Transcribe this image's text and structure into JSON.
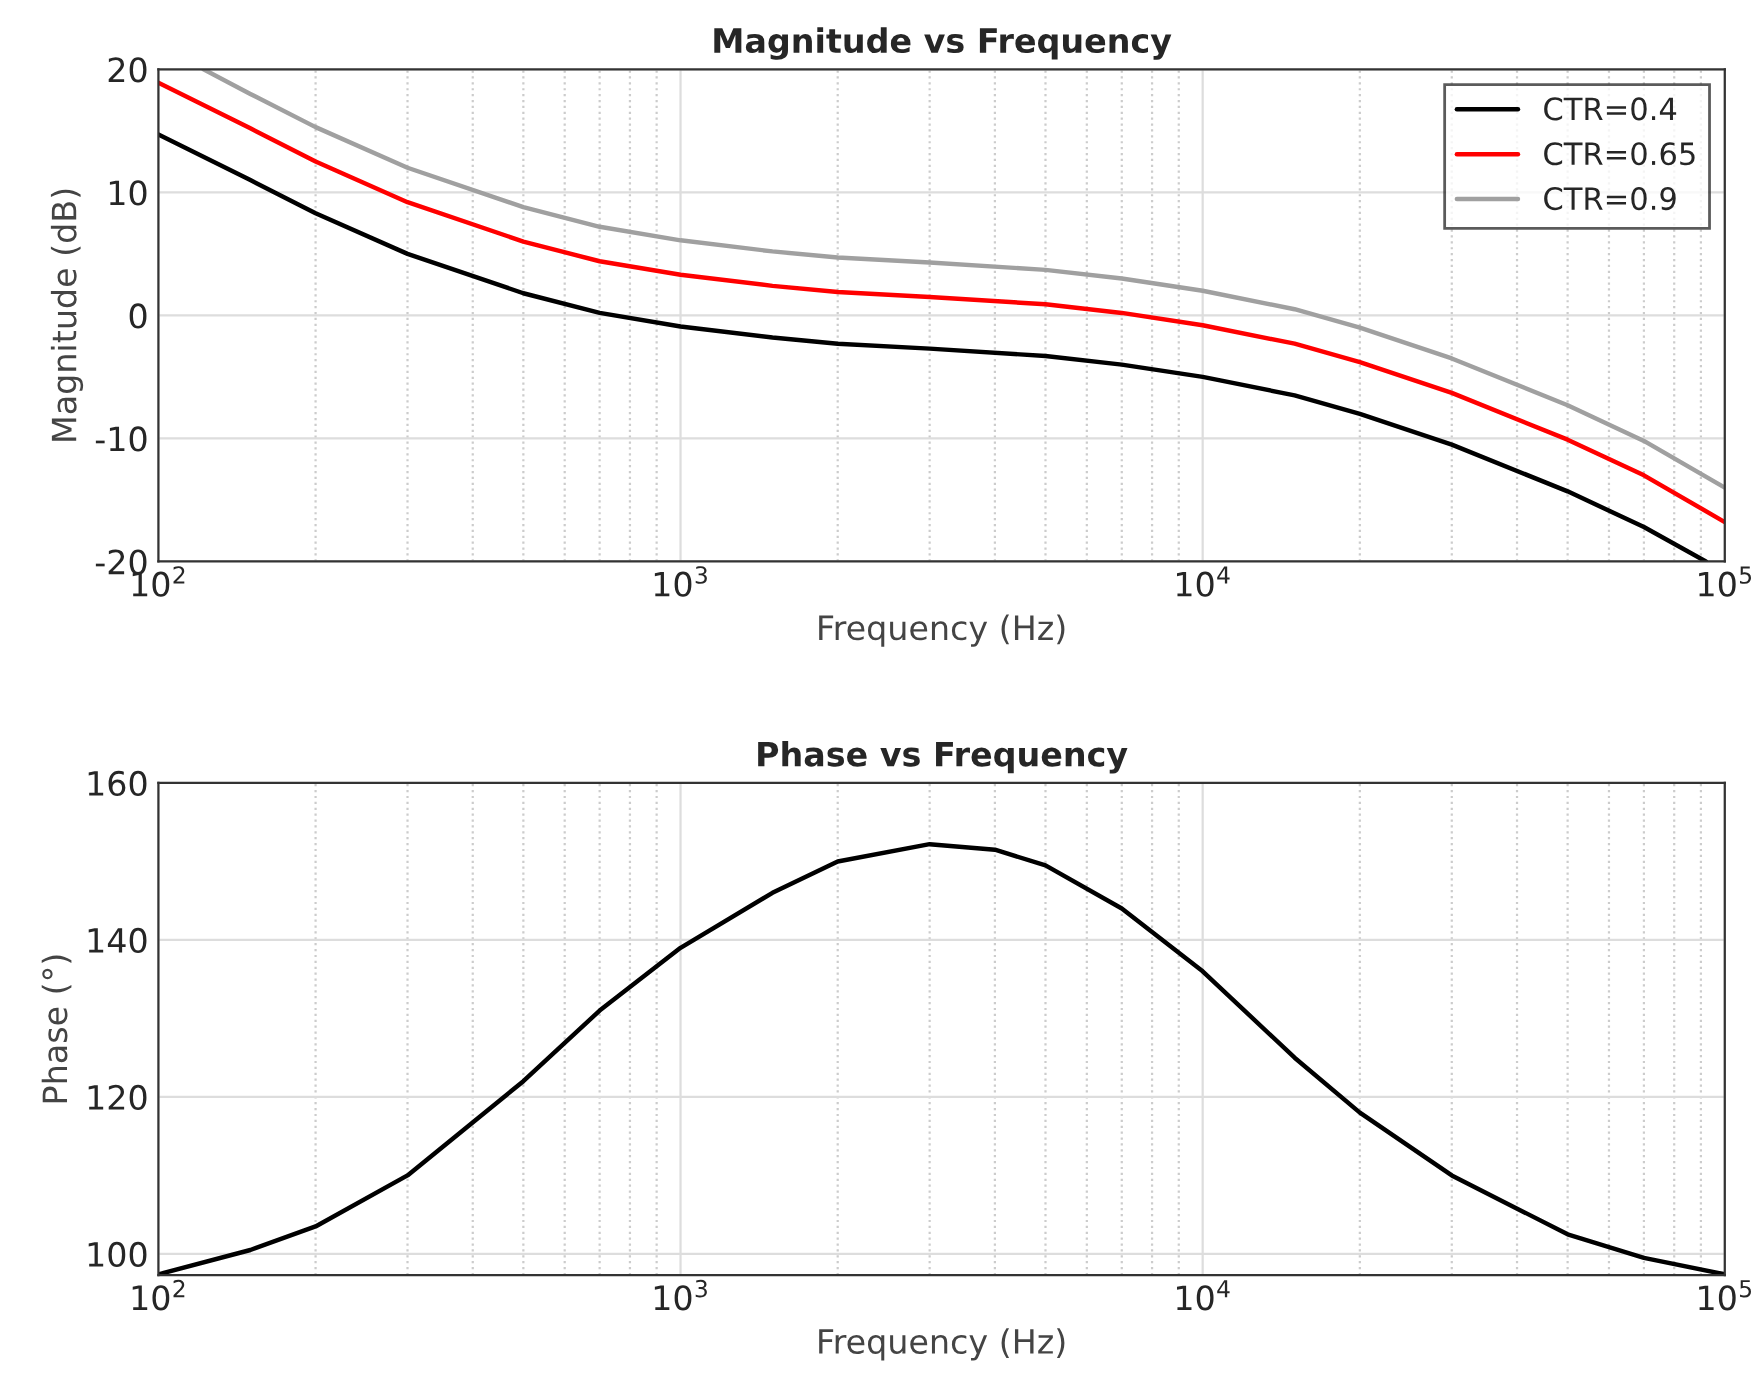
{
  "chart_data": [
    {
      "type": "line",
      "title": "Magnitude vs Frequency",
      "xlabel": "Frequency (Hz)",
      "ylabel": "Magnitude (dB)",
      "log": "x",
      "grid": true,
      "legend": "top right",
      "xlim": [
        100,
        100000
      ],
      "ylim": [
        -20,
        20
      ],
      "xticks": [
        {
          "value": 100,
          "label": "10$^{2}$"
        },
        {
          "value": 1000,
          "label": "10$^{3}$"
        },
        {
          "value": 10000,
          "label": "10$^{4}$"
        },
        {
          "value": 100000,
          "label": "10$^{5}$"
        }
      ],
      "yticks": [
        -20,
        -10,
        0,
        10,
        20
      ],
      "series": [
        {
          "name": "CTR=0.4",
          "color": "#000000",
          "x": [
            100,
            150,
            200,
            300,
            500,
            700,
            1000,
            1500,
            2000,
            3000,
            5000,
            7000,
            10000,
            15000,
            20000,
            30000,
            50000,
            70000,
            92000
          ],
          "values": [
            14.7,
            11.0,
            8.3,
            5.0,
            1.8,
            0.2,
            -0.9,
            -1.8,
            -2.3,
            -2.7,
            -3.3,
            -4.0,
            -5.0,
            -6.5,
            -8.0,
            -10.5,
            -14.3,
            -17.2,
            -20.0
          ]
        },
        {
          "name": "CTR=0.65",
          "color": "#ff0000",
          "x": [
            100,
            150,
            200,
            300,
            500,
            700,
            1000,
            1500,
            2000,
            3000,
            5000,
            7000,
            10000,
            15000,
            20000,
            30000,
            50000,
            70000,
            100000
          ],
          "values": [
            18.9,
            15.2,
            12.5,
            9.2,
            6.0,
            4.4,
            3.3,
            2.4,
            1.9,
            1.5,
            0.9,
            0.2,
            -0.8,
            -2.3,
            -3.8,
            -6.3,
            -10.1,
            -13.0,
            -16.8
          ]
        },
        {
          "name": "CTR=0.9",
          "color": "#a0a0a0",
          "x": [
            122,
            150,
            200,
            300,
            500,
            700,
            1000,
            1500,
            2000,
            3000,
            5000,
            7000,
            10000,
            15000,
            20000,
            30000,
            50000,
            70000,
            100000
          ],
          "values": [
            20.0,
            18.0,
            15.3,
            12.0,
            8.8,
            7.2,
            6.1,
            5.2,
            4.7,
            4.3,
            3.7,
            3.0,
            2.0,
            0.5,
            -1.0,
            -3.5,
            -7.3,
            -10.2,
            -14.0
          ]
        }
      ]
    },
    {
      "type": "line",
      "title": "Phase vs Frequency",
      "xlabel": "Frequency (Hz)",
      "ylabel": "Phase (°)",
      "log": "x",
      "grid": true,
      "xlim": [
        100,
        100000
      ],
      "ylim": [
        97.3,
        160
      ],
      "xticks": [
        {
          "value": 100,
          "label": "10$^{2}$"
        },
        {
          "value": 1000,
          "label": "10$^{3}$"
        },
        {
          "value": 10000,
          "label": "10$^{4}$"
        },
        {
          "value": 100000,
          "label": "10$^{5}$"
        }
      ],
      "yticks": [
        100,
        120,
        140,
        160
      ],
      "series": [
        {
          "color": "#000000",
          "x": [
            100,
            150,
            200,
            300,
            500,
            700,
            1000,
            1500,
            2000,
            3000,
            4000,
            5000,
            7000,
            10000,
            15000,
            20000,
            30000,
            50000,
            70000,
            100000
          ],
          "values": [
            97.4,
            100.5,
            103.5,
            110,
            122,
            131,
            139,
            146,
            150,
            152.2,
            151.5,
            149.5,
            144,
            136,
            125,
            118,
            110,
            102.5,
            99.5,
            97.4
          ]
        }
      ]
    }
  ]
}
